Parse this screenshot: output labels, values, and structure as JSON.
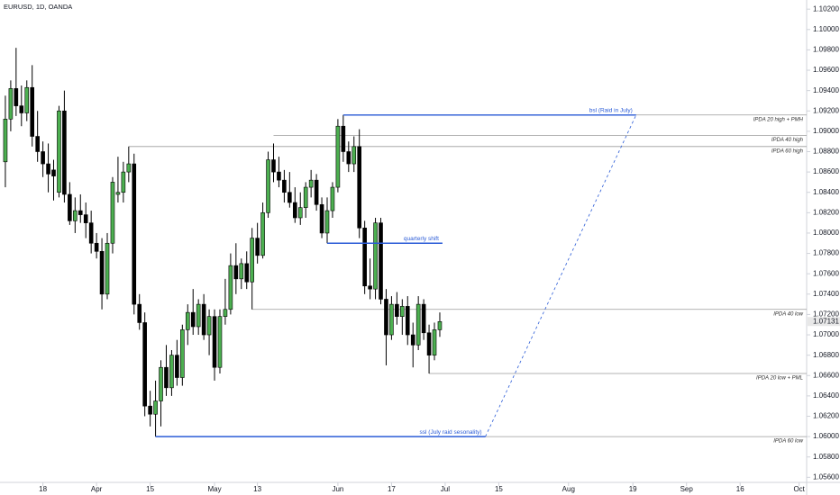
{
  "chart_data": {
    "type": "candlestick",
    "title": "EURUSD, 1D, OANDA",
    "up_color": "#4caf50",
    "down_color": "#000000",
    "drawing_color": "#2a5bd7",
    "level_color": "#9a9a9a",
    "xlim": [
      -8,
      142.4
    ],
    "ylim": [
      1.0555,
      1.1029
    ],
    "xticks": [
      {
        "value": 0,
        "label": "18"
      },
      {
        "value": 10,
        "label": "Apr"
      },
      {
        "value": 20,
        "label": "15"
      },
      {
        "value": 32,
        "label": "May"
      },
      {
        "value": 40,
        "label": "13"
      },
      {
        "value": 55,
        "label": "Jun"
      },
      {
        "value": 65,
        "label": "17"
      },
      {
        "value": 75,
        "label": "Jul"
      },
      {
        "value": 85,
        "label": "15"
      },
      {
        "value": 98,
        "label": "Aug"
      },
      {
        "value": 110,
        "label": "19"
      },
      {
        "value": 120,
        "label": "Sep"
      },
      {
        "value": 130,
        "label": "16"
      },
      {
        "value": 141,
        "label": "Oct"
      }
    ],
    "yticks": [
      {
        "value": 1.056,
        "label": "1.05600"
      },
      {
        "value": 1.058,
        "label": "1.05800"
      },
      {
        "value": 1.06,
        "label": "1.06000"
      },
      {
        "value": 1.062,
        "label": "1.06200"
      },
      {
        "value": 1.064,
        "label": "1.06400"
      },
      {
        "value": 1.066,
        "label": "1.06600"
      },
      {
        "value": 1.068,
        "label": "1.06800"
      },
      {
        "value": 1.07,
        "label": "1.07000"
      },
      {
        "value": 1.072,
        "label": "1.07200"
      },
      {
        "value": 1.074,
        "label": "1.07400"
      },
      {
        "value": 1.076,
        "label": "1.07600"
      },
      {
        "value": 1.078,
        "label": "1.07800"
      },
      {
        "value": 1.08,
        "label": "1.08000"
      },
      {
        "value": 1.082,
        "label": "1.08200"
      },
      {
        "value": 1.084,
        "label": "1.08400"
      },
      {
        "value": 1.086,
        "label": "1.08600"
      },
      {
        "value": 1.088,
        "label": "1.08800"
      },
      {
        "value": 1.09,
        "label": "1.09000"
      },
      {
        "value": 1.092,
        "label": "1.09200"
      },
      {
        "value": 1.094,
        "label": "1.09400"
      },
      {
        "value": 1.096,
        "label": "1.09600"
      },
      {
        "value": 1.098,
        "label": "1.09800"
      },
      {
        "value": 1.1,
        "label": "1.10000"
      },
      {
        "value": 1.102,
        "label": "1.10200"
      }
    ],
    "last_price": {
      "value": 1.07131,
      "label": "1.07131"
    },
    "x": [
      -7,
      -6,
      -5,
      -4,
      -3,
      -2,
      -1,
      0,
      1,
      2,
      3,
      4,
      5,
      6,
      7,
      8,
      9,
      10,
      11,
      12,
      13,
      14,
      15,
      16,
      17,
      18,
      19,
      20,
      21,
      22,
      23,
      24,
      25,
      26,
      27,
      28,
      29,
      30,
      31,
      32,
      33,
      34,
      35,
      36,
      37,
      38,
      39,
      40,
      41,
      42,
      43,
      44,
      45,
      46,
      47,
      48,
      49,
      50,
      51,
      52,
      53,
      54,
      55,
      56,
      57,
      58,
      59,
      60,
      61,
      62,
      63,
      64,
      65,
      66,
      67,
      68,
      69,
      70,
      71,
      72,
      73,
      74
    ],
    "open": [
      1.087,
      1.0912,
      1.0942,
      1.0925,
      1.0918,
      1.0943,
      1.0895,
      1.088,
      1.0868,
      1.0862,
      1.084,
      1.092,
      1.0838,
      1.0812,
      1.0822,
      1.0818,
      1.081,
      1.079,
      1.0782,
      1.074,
      1.079,
      1.0838,
      1.084,
      1.086,
      1.0868,
      1.073,
      1.0712,
      1.063,
      1.0622,
      1.0635,
      1.0668,
      1.0648,
      1.068,
      1.0658,
      1.0705,
      1.0722,
      1.0708,
      1.073,
      1.07,
      1.0718,
      1.0668,
      1.0718,
      1.0725,
      1.0768,
      1.0755,
      1.077,
      1.0752,
      1.0795,
      1.0778,
      1.082,
      1.0872,
      1.086,
      1.0852,
      1.084,
      1.083,
      1.0815,
      1.0825,
      1.0845,
      1.0852,
      1.0828,
      1.08,
      1.0822,
      1.0845,
      1.0905,
      1.088,
      1.0868,
      1.0885,
      1.0805,
      1.0748,
      1.0745,
      1.081,
      1.0735,
      1.07,
      1.073,
      1.0718,
      1.0728,
      1.07,
      1.069,
      1.073,
      1.0702,
      1.068,
      1.0705
    ],
    "high": [
      1.0935,
      1.095,
      1.0982,
      1.0945,
      1.095,
      1.0965,
      1.092,
      1.089,
      1.0888,
      1.0872,
      1.0925,
      1.094,
      1.085,
      1.0835,
      1.0838,
      1.083,
      1.0822,
      1.08,
      1.0795,
      1.08,
      1.0855,
      1.0875,
      1.087,
      1.0885,
      1.0878,
      1.074,
      1.0722,
      1.0645,
      1.0655,
      1.0675,
      1.069,
      1.0685,
      1.0695,
      1.071,
      1.073,
      1.0745,
      1.0735,
      1.074,
      1.0725,
      1.0725,
      1.0725,
      1.0755,
      1.078,
      1.079,
      1.0775,
      1.0782,
      1.0805,
      1.081,
      1.083,
      1.088,
      1.0888,
      1.0875,
      1.0862,
      1.086,
      1.0845,
      1.084,
      1.085,
      1.0862,
      1.0858,
      1.0835,
      1.0835,
      1.085,
      1.0912,
      1.0916,
      1.089,
      1.0895,
      1.0902,
      1.0812,
      1.0775,
      1.0815,
      1.0815,
      1.0745,
      1.0738,
      1.0742,
      1.0735,
      1.0738,
      1.0712,
      1.0738,
      1.0735,
      1.071,
      1.0712,
      1.0722
    ],
    "low": [
      1.0845,
      1.09,
      1.0915,
      1.0905,
      1.091,
      1.0885,
      1.087,
      1.0855,
      1.084,
      1.0832,
      1.0835,
      1.083,
      1.0808,
      1.08,
      1.081,
      1.0795,
      1.078,
      1.0775,
      1.0725,
      1.0735,
      1.078,
      1.083,
      1.083,
      1.085,
      1.072,
      1.0705,
      1.062,
      1.061,
      1.06,
      1.061,
      1.064,
      1.064,
      1.065,
      1.065,
      1.069,
      1.07,
      1.07,
      1.0695,
      1.068,
      1.0655,
      1.0662,
      1.071,
      1.072,
      1.074,
      1.0745,
      1.0745,
      1.0725,
      1.077,
      1.0775,
      1.0815,
      1.085,
      1.0845,
      1.083,
      1.0825,
      1.081,
      1.0808,
      1.0815,
      1.0835,
      1.0822,
      1.0795,
      1.079,
      1.0815,
      1.084,
      1.087,
      1.086,
      1.086,
      1.0795,
      1.074,
      1.0735,
      1.0735,
      1.073,
      1.067,
      1.0695,
      1.071,
      1.07,
      1.069,
      1.0668,
      1.0685,
      1.0695,
      1.0662,
      1.0675,
      1.0698
    ],
    "close": [
      1.0912,
      1.0942,
      1.0925,
      1.0918,
      1.0943,
      1.0895,
      1.088,
      1.0868,
      1.0858,
      1.0856,
      1.092,
      1.0838,
      1.0812,
      1.0822,
      1.0818,
      1.081,
      1.079,
      1.0782,
      1.074,
      1.079,
      1.085,
      1.084,
      1.086,
      1.0868,
      1.073,
      1.0712,
      1.063,
      1.0622,
      1.0635,
      1.0668,
      1.0648,
      1.068,
      1.0658,
      1.0705,
      1.0722,
      1.0708,
      1.073,
      1.07,
      1.0718,
      1.0668,
      1.0718,
      1.0725,
      1.0768,
      1.0755,
      1.077,
      1.0752,
      1.0795,
      1.0778,
      1.082,
      1.0872,
      1.086,
      1.0852,
      1.084,
      1.083,
      1.0815,
      1.0825,
      1.0845,
      1.0852,
      1.0828,
      1.08,
      1.0822,
      1.0845,
      1.0905,
      1.088,
      1.0868,
      1.0885,
      1.0805,
      1.0748,
      1.0745,
      1.081,
      1.0735,
      1.07,
      1.073,
      1.0718,
      1.0728,
      1.07,
      1.069,
      1.073,
      1.0702,
      1.068,
      1.0705,
      1.0713
    ],
    "levels": [
      {
        "label": "IPDA 20 high + PMH",
        "value": 1.0916,
        "from": 56
      },
      {
        "label": "IPDA 40 high",
        "value": 1.0896,
        "from": 43
      },
      {
        "label": "IPDA 60 high",
        "value": 1.0885,
        "from": 16
      },
      {
        "label": "IPDA 40 low",
        "value": 1.0725,
        "from": 39
      },
      {
        "label": "IPDA 20 low + PML",
        "value": 1.0662,
        "from": 72
      },
      {
        "label": "IPDA 60 low",
        "value": 1.06,
        "from": 21
      }
    ],
    "drawings": [
      {
        "label": "bsl (Raid in July)",
        "value": 1.0916,
        "from": 56,
        "to": 110.6
      },
      {
        "label": "quarterly shift",
        "value": 1.079,
        "from": 53,
        "to": 74.5
      },
      {
        "label": "ssl (July raid sesonality)",
        "value": 1.06,
        "from": 21,
        "to": 82.5
      }
    ],
    "projection": {
      "x": [
        82.5,
        110.6
      ],
      "y": [
        1.06,
        1.0916
      ]
    }
  }
}
